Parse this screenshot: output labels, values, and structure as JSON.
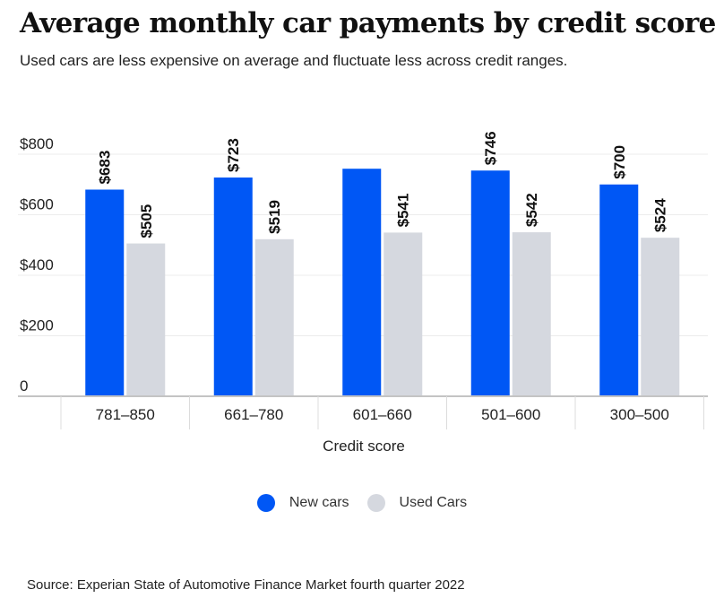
{
  "title": "Average monthly car payments by credit score",
  "subtitle": "Used cars are less expensive on average and fluctuate less across credit ranges.",
  "source": "Source: Experian State of Automotive Finance Market fourth quarter 2022",
  "chart_data": {
    "type": "bar",
    "title": "Average monthly car payments by credit score",
    "xlabel": "Credit score",
    "ylabel": "",
    "categories": [
      "781–850",
      "661–780",
      "601–660",
      "501–600",
      "300–500"
    ],
    "series": [
      {
        "name": "New cars",
        "values": [
          683,
          723,
          752,
          746,
          700
        ],
        "labels": [
          "$683",
          "$723",
          "",
          "$746",
          "$700"
        ],
        "color": "#0057f5"
      },
      {
        "name": "Used Cars",
        "values": [
          505,
          519,
          541,
          542,
          524
        ],
        "labels": [
          "$505",
          "$519",
          "$541",
          "$542",
          "$524"
        ],
        "color": "#d5d8df"
      }
    ],
    "ylim": [
      0,
      800
    ],
    "yticks": [
      0,
      200,
      400,
      600,
      800
    ],
    "ytick_labels": [
      "0",
      "$200",
      "$400",
      "$600",
      "$800"
    ],
    "grid": true,
    "legend": "bottom-center"
  }
}
